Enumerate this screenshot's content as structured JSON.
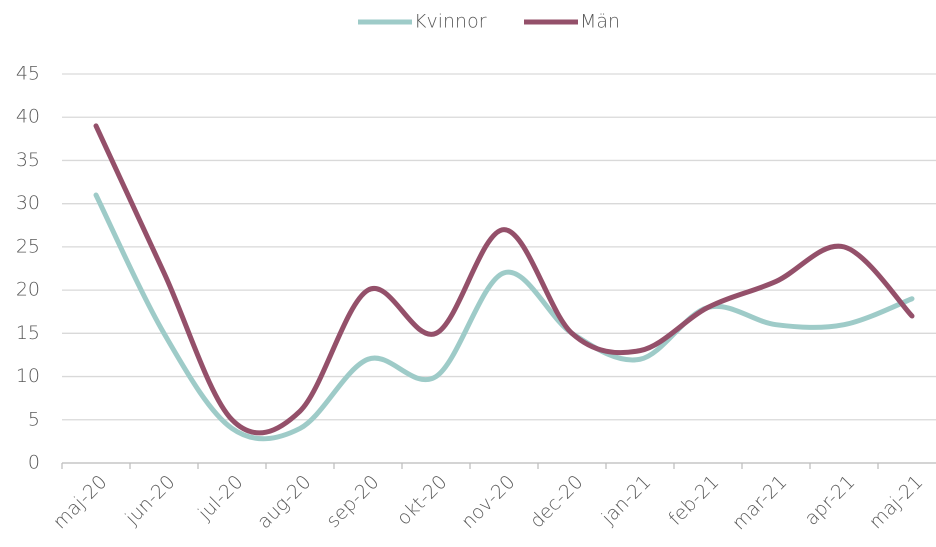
{
  "chart_data": {
    "type": "line",
    "categories": [
      "maj-20",
      "jun-20",
      "jul-20",
      "aug-20",
      "sep-20",
      "okt-20",
      "nov-20",
      "dec-20",
      "jan-21",
      "feb-21",
      "mar-21",
      "apr-21",
      "maj-21"
    ],
    "series": [
      {
        "name": "Kvinnor",
        "color": "#9ecbc8",
        "values": [
          31,
          15,
          4,
          4,
          12,
          10,
          22,
          15,
          12,
          18,
          16,
          16,
          19
        ]
      },
      {
        "name": "Män",
        "color": "#94506a",
        "values": [
          39,
          22,
          5,
          6,
          20,
          15,
          27,
          15,
          13,
          18,
          21,
          25,
          17
        ]
      }
    ],
    "ylim": [
      0,
      45
    ],
    "yticks": [
      0,
      5,
      10,
      15,
      20,
      25,
      30,
      35,
      40,
      45
    ],
    "grid": true,
    "smooth": true,
    "legend": "top"
  }
}
